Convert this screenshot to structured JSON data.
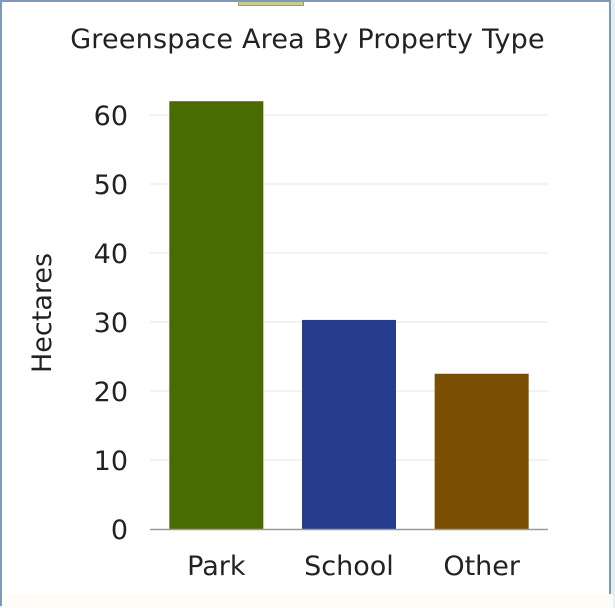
{
  "chart_data": {
    "type": "bar",
    "title": "Greenspace Area By Property Type",
    "xlabel": "",
    "ylabel": "Hectares",
    "categories": [
      "Park",
      "School",
      "Other"
    ],
    "values": [
      62,
      30.3,
      22.5
    ],
    "colors": [
      "#4a6b00",
      "#253d8c",
      "#7a4f04"
    ],
    "ylim": [
      0,
      65
    ],
    "yticks": [
      0,
      10,
      20,
      30,
      40,
      50,
      60
    ],
    "grid": true
  }
}
